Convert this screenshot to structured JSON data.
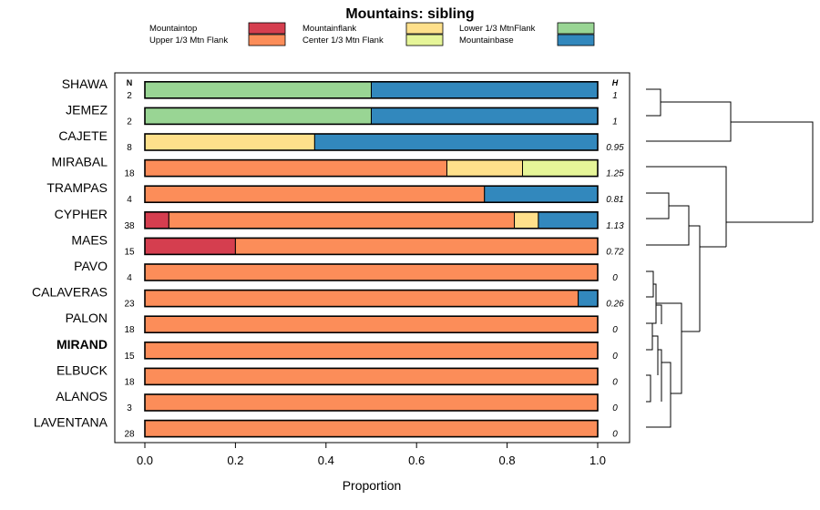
{
  "chart_data": {
    "type": "bar",
    "stacked": true,
    "orientation": "horizontal",
    "title": "Mountains: sibling",
    "xlabel": "Proportion",
    "ylabel": "",
    "xlim": [
      0,
      1
    ],
    "x_ticks": [
      {
        "value": 0.0,
        "label": "0.0"
      },
      {
        "value": 0.2,
        "label": "0.2"
      },
      {
        "value": 0.4,
        "label": "0.4"
      },
      {
        "value": 0.6,
        "label": "0.6"
      },
      {
        "value": 0.8,
        "label": "0.8"
      },
      {
        "value": 1.0,
        "label": "1.0"
      }
    ],
    "n_header": "N",
    "h_header": "H",
    "legend_position": "top",
    "legend": [
      {
        "name": "Mountaintop",
        "color": "#d53e4f"
      },
      {
        "name": "Upper 1/3 Mtn Flank",
        "color": "#fc8d59"
      },
      {
        "name": "Mountainflank",
        "color": "#fee08b"
      },
      {
        "name": "Center 1/3 Mtn Flank",
        "color": "#e6f598"
      },
      {
        "name": "Lower 1/3 MtnFlank",
        "color": "#99d594"
      },
      {
        "name": "Mountainbase",
        "color": "#3288bd"
      }
    ],
    "categories": [
      "SHAWA",
      "JEMEZ",
      "CAJETE",
      "MIRABAL",
      "TRAMPAS",
      "CYPHER",
      "MAES",
      "PAVO",
      "CALAVERAS",
      "PALON",
      "MIRAND",
      "ELBUCK",
      "ALANOS",
      "LAVENTANA"
    ],
    "highlighted_category": "MIRAND",
    "n_values": [
      "2",
      "2",
      "8",
      "18",
      "4",
      "38",
      "15",
      "4",
      "23",
      "18",
      "15",
      "18",
      "3",
      "28"
    ],
    "h_values": [
      "1",
      "1",
      "0.95",
      "1.25",
      "0.81",
      "1.13",
      "0.72",
      "0",
      "0.26",
      "0",
      "0",
      "0",
      "0",
      "0"
    ],
    "series": [
      {
        "name": "Mountaintop",
        "values": [
          0,
          0,
          0,
          0,
          0,
          0.053,
          0.2,
          0,
          0,
          0,
          0,
          0,
          0,
          0
        ]
      },
      {
        "name": "Upper 1/3 Mtn Flank",
        "values": [
          0,
          0,
          0,
          0.667,
          0.75,
          0.763,
          0.8,
          1,
          0.957,
          1,
          1,
          1,
          1,
          1
        ]
      },
      {
        "name": "Mountainflank",
        "values": [
          0,
          0,
          0.375,
          0.167,
          0,
          0.053,
          0,
          0,
          0,
          0,
          0,
          0,
          0,
          0
        ]
      },
      {
        "name": "Center 1/3 Mtn Flank",
        "values": [
          0,
          0,
          0,
          0.166,
          0,
          0,
          0,
          0,
          0,
          0,
          0,
          0,
          0,
          0
        ]
      },
      {
        "name": "Lower 1/3 MtnFlank",
        "values": [
          0.5,
          0.5,
          0,
          0,
          0,
          0,
          0,
          0,
          0,
          0,
          0,
          0,
          0,
          0
        ]
      },
      {
        "name": "Mountainbase",
        "values": [
          0.5,
          0.5,
          0.625,
          0,
          0.25,
          0.131,
          0,
          0,
          0.043,
          0,
          0,
          0,
          0,
          0
        ]
      }
    ],
    "dendrogram": {
      "type": "hierarchical-clustering",
      "merges": [
        {
          "left": "SHAWA",
          "right": "JEMEZ",
          "height": 0.1
        },
        {
          "left": "PALON",
          "right": "MIRAND",
          "height": 0.05
        },
        {
          "left": "ELBUCK",
          "right": "ALANOS",
          "height": 0.04
        },
        {
          "left": "TRAMPAS",
          "right": "CYPHER",
          "height": 0.15
        },
        {
          "left": "PAVO",
          "right": "CALAVERAS",
          "height": 0.05
        },
        {
          "left": "[PALON,MIRAND]",
          "right": "[ELBUCK,ALANOS]",
          "height": 0.08
        },
        {
          "left": "[..]",
          "right": "LAVENTANA",
          "height": 0.11
        },
        {
          "left": "[PAVO,CALAVERAS]",
          "right": "[..]",
          "height": 0.13
        },
        {
          "left": "[TRAMPAS,CYPHER]",
          "right": "MAES",
          "height": 0.2
        },
        {
          "left": "[..]",
          "right": "[..]",
          "height": 0.3
        },
        {
          "left": "MIRABAL",
          "right": "[..]",
          "height": 0.45
        },
        {
          "left": "[SHAWA,JEMEZ]",
          "right": "CAJETE",
          "height": 0.5
        },
        {
          "left": "[..]",
          "right": "[..]",
          "height": 1.0
        }
      ]
    }
  }
}
